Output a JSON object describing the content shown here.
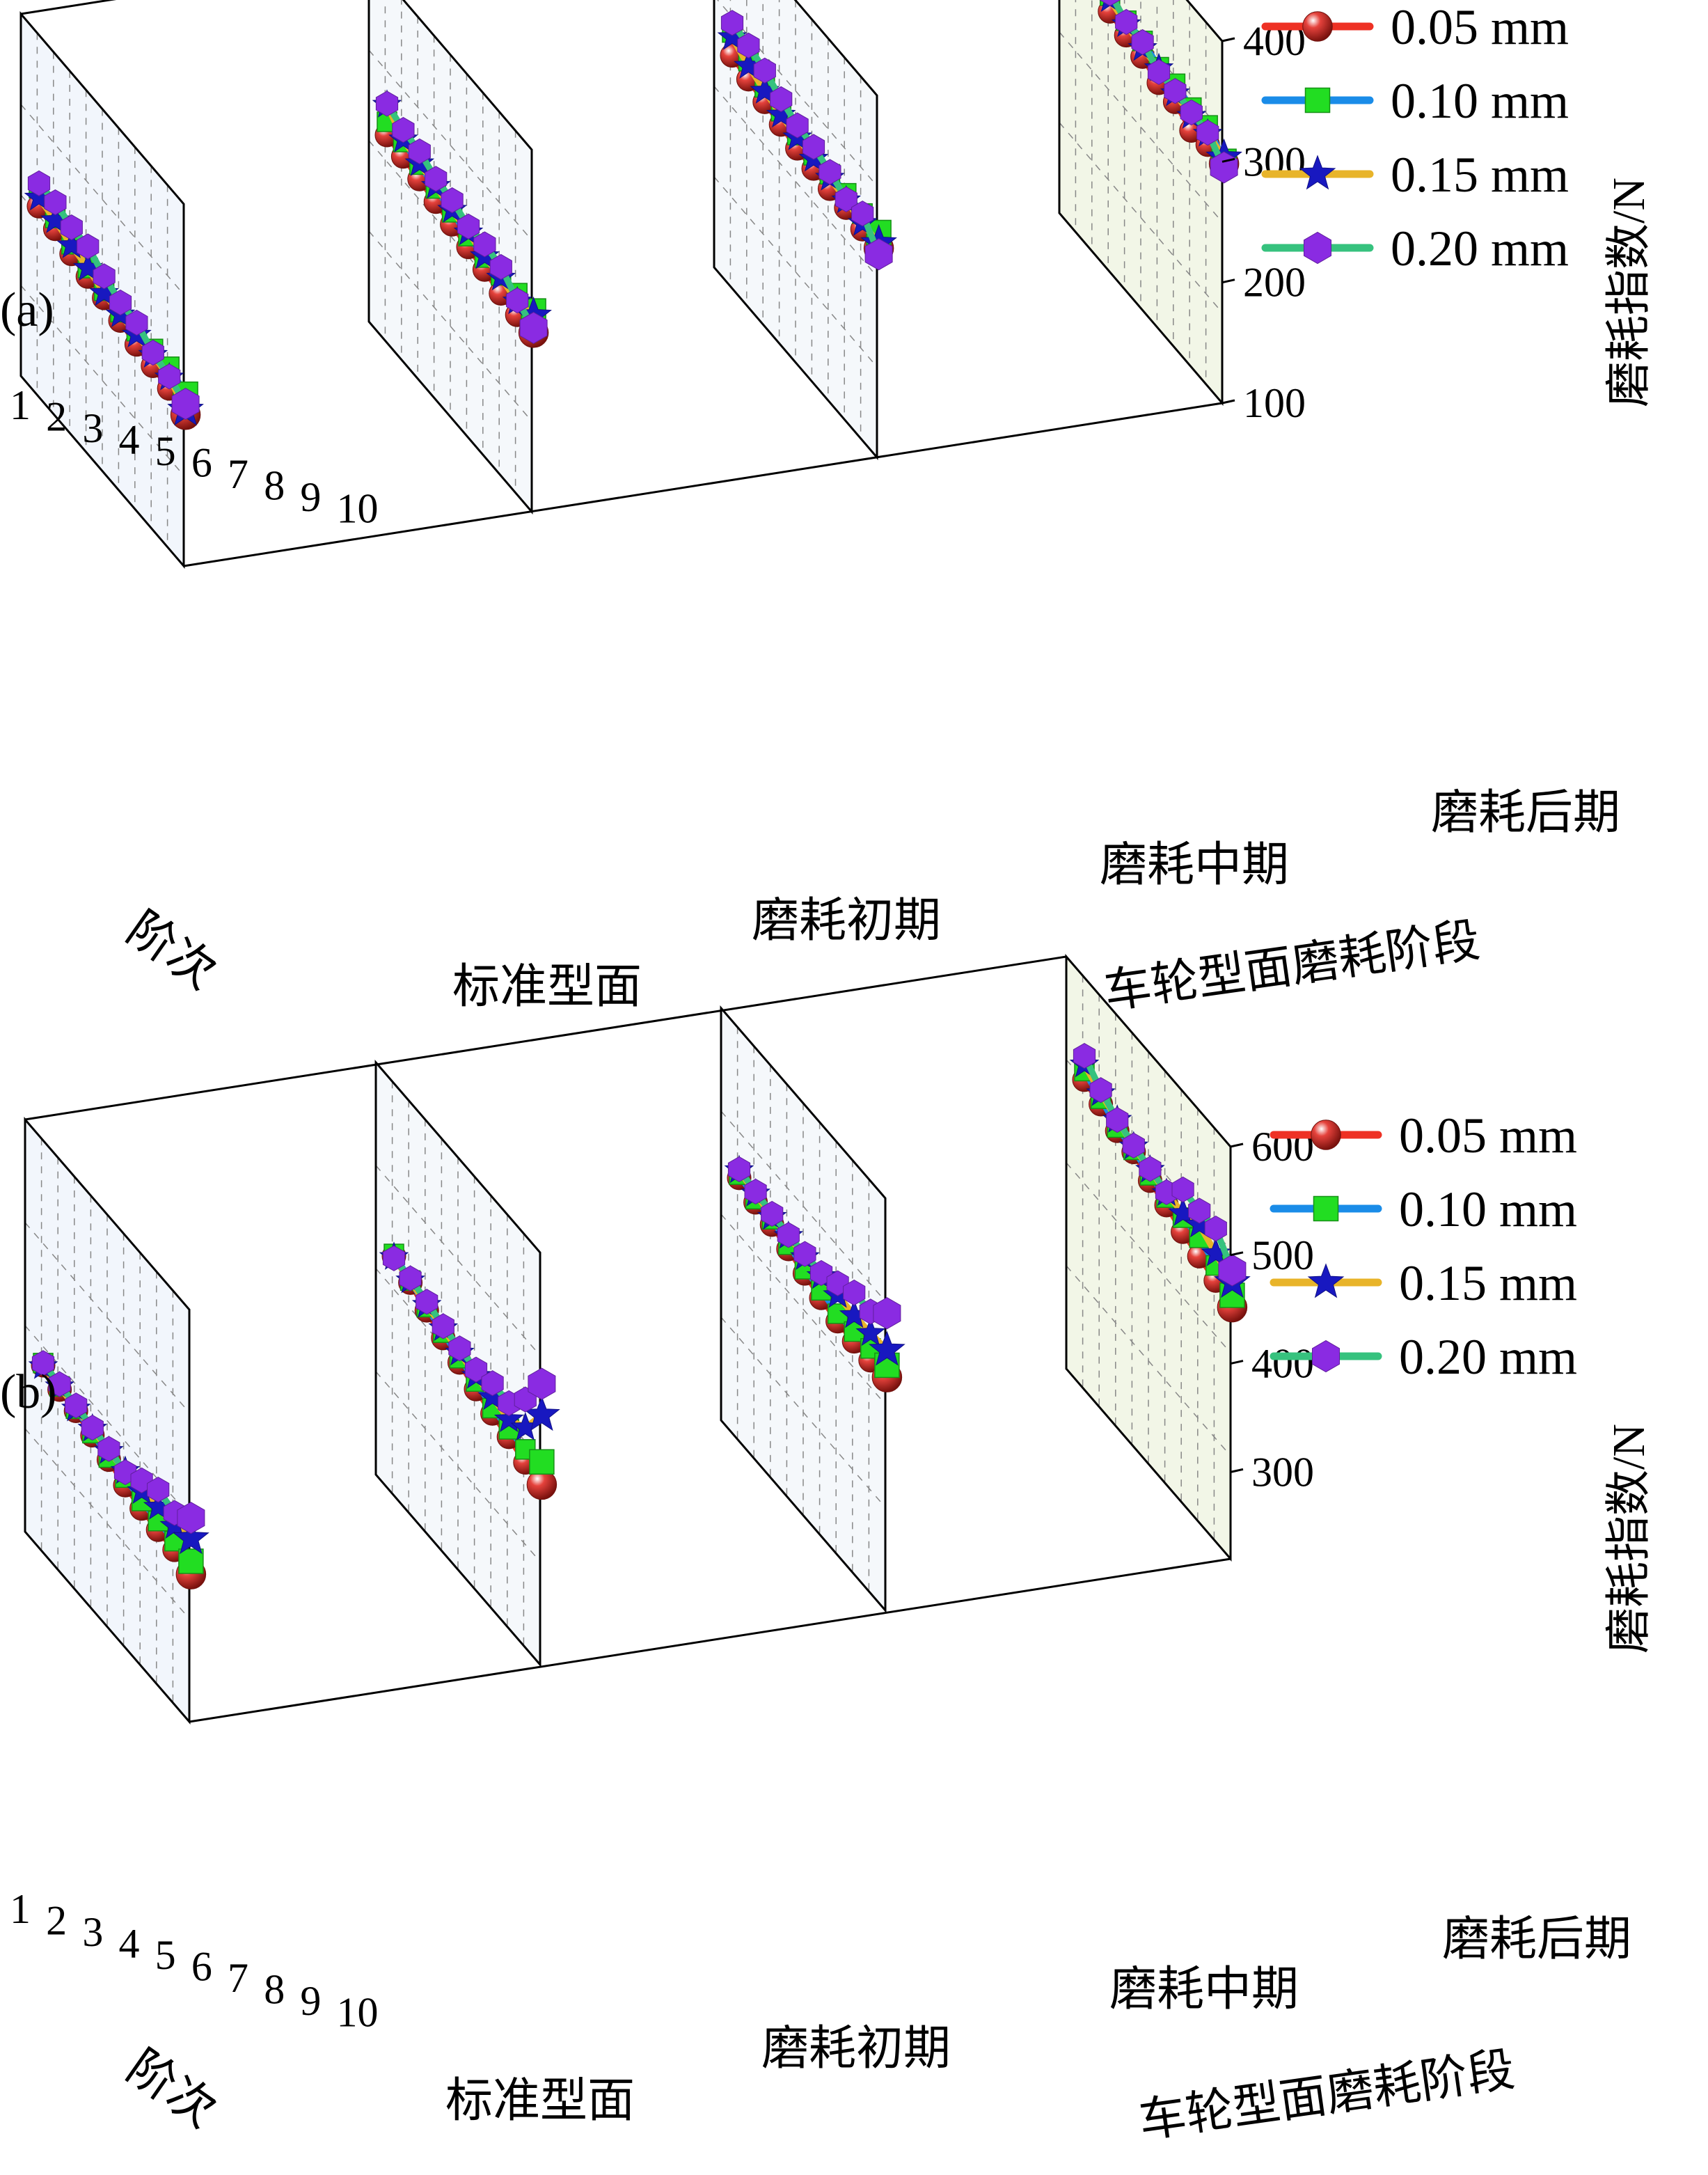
{
  "legend": [
    {
      "label": "0.05 mm",
      "color": "#ee3124",
      "marker": "sphere",
      "marker_color": "#e0211a"
    },
    {
      "label": "0.10 mm",
      "color": "#1a8ce8",
      "marker": "square",
      "marker_color": "#22dd22"
    },
    {
      "label": "0.15 mm",
      "color": "#e8b42a",
      "marker": "star",
      "marker_color": "#1818c0"
    },
    {
      "label": "0.20 mm",
      "color": "#36c27e",
      "marker": "hexagon",
      "marker_color": "#8a2be2"
    }
  ],
  "chart_data": [
    {
      "panel_label": "(a)",
      "type": "line3d",
      "x_title": "阶次",
      "x_ticks": [
        "1",
        "2",
        "3",
        "4",
        "5",
        "6",
        "7",
        "8",
        "9",
        "10"
      ],
      "y_title": "车轮型面磨耗阶段",
      "y_categories": [
        "标准型面",
        "磨耗初期",
        "磨耗中期",
        "磨耗后期"
      ],
      "z_title": "磨耗指数/N",
      "z_ticks": [
        "100",
        "200",
        "300",
        "400"
      ],
      "zlim": [
        100,
        400
      ],
      "series": [
        {
          "name": "0.05 mm",
          "groups": [
            [
              251,
              248,
              243,
              240,
              238,
              235,
              231,
              229,
              226,
              220
            ],
            [
              265,
              263,
              260,
              257,
              254,
              251,
              248,
              244,
              242,
              243
            ],
            [
              286,
              282,
              279,
              276,
              272,
              271,
              270,
              270,
              268,
              268
            ],
            [
              323,
              317,
              309,
              305,
              303,
              297,
              297,
              289,
              293,
              293
            ]
          ]
        },
        {
          "name": "0.10 mm",
          "groups": [
            [
              266,
              257,
              251,
              247,
              244,
              242,
              242,
              243,
              244,
              237
            ],
            [
              276,
              275,
              272,
              268,
              264,
              260,
              258,
              259,
              260,
              261
            ],
            [
              305,
              297,
              291,
              287,
              283,
              282,
              282,
              282,
              281,
              281
            ],
            [
              340,
              331,
              322,
              317,
              316,
              310,
              312,
              308,
              309,
              295
            ]
          ]
        },
        {
          "name": "0.15 mm",
          "groups": [
            [
              258,
              255,
              250,
              247,
              242,
              240,
              239,
              238,
              235,
              224
            ],
            [
              290,
              277,
              273,
              270,
              266,
              263,
              259,
              257,
              253,
              257
            ],
            [
              301,
              293,
              288,
              284,
              281,
              279,
              279,
              276,
              273,
              272
            ],
            [
              339,
              330,
              319,
              314,
              310,
              309,
              304,
              301,
              302,
              298
            ]
          ]
        },
        {
          "name": "0.20 mm",
          "groups": [
            [
              270,
              270,
              265,
              265,
              256,
              250,
              249,
              240,
              236,
              229
            ],
            [
              291,
              285,
              283,
              276,
              274,
              268,
              269,
              266,
              254,
              247
            ],
            [
              313,
              310,
              305,
              297,
              291,
              289,
              284,
              277,
              281,
              263
            ],
            [
              351,
              336,
              324,
              316,
              315,
              306,
              306,
              304,
              303,
              290
            ]
          ]
        }
      ]
    },
    {
      "panel_label": "(b)",
      "type": "line3d",
      "x_title": "阶次",
      "x_ticks": [
        "1",
        "2",
        "3",
        "4",
        "5",
        "6",
        "7",
        "8",
        "9",
        "10"
      ],
      "y_title": "车轮型面磨耗阶段",
      "y_categories": [
        "标准型面",
        "磨耗初期",
        "磨耗中期",
        "磨耗后期"
      ],
      "z_title": "磨耗指数/N",
      "z_ticks": [
        "300",
        "400",
        "500",
        "600"
      ],
      "zlim": [
        220,
        600
      ],
      "series": [
        {
          "name": "0.05 mm",
          "groups": [
            [
              385,
              380,
              378,
              373,
              368,
              362,
              358,
              356,
              355,
              350
            ],
            [
              433,
              426,
              418,
              410,
              405,
              398,
              393,
              389,
              383,
              380
            ],
            [
              455,
              450,
              447,
              442,
              437,
              432,
              428,
              427,
              427,
              429
            ],
            [
              498,
              493,
              486,
              484,
              475,
              470,
              463,
              458,
              453,
              446
            ]
          ]
        },
        {
          "name": "0.10 mm",
          "groups": [
            [
              387,
              383,
              380,
              375,
              370,
              369,
              365,
              364,
              363,
              362
            ],
            [
              435,
              428,
              421,
              415,
              409,
              405,
              398,
              396,
              395,
              401
            ],
            [
              458,
              453,
              452,
              446,
              441,
              439,
              435,
              436,
              438,
              440
            ],
            [
              506,
              498,
              489,
              486,
              480,
              477,
              476,
              475,
              467,
              457
            ]
          ]
        },
        {
          "name": "0.15 mm",
          "groups": [
            [
              384,
              383,
              380,
              379,
              376,
              375,
              374,
              377,
              377,
              383
            ],
            [
              432,
              428,
              423,
              419,
              414,
              410,
              408,
              405,
              415,
              444
            ],
            [
              462,
              458,
              454,
              454,
              452,
              452,
              452,
              451,
              452,
              454
            ],
            [
              512,
              503,
              496,
              489,
              485,
              481,
              480,
              487,
              478,
              469
            ]
          ]
        },
        {
          "name": "0.20 mm",
          "groups": [
            [
              387,
              385,
              383,
              380,
              378,
              374,
              384,
              393,
              389,
              402
            ],
            [
              431,
              430,
              426,
              421,
              418,
              416,
              421,
              420,
              441,
              473
            ],
            [
              463,
              460,
              457,
              455,
              455,
              455,
              463,
              472,
              472,
              488
            ],
            [
              520,
              506,
              496,
              490,
              486,
              482,
              502,
              500,
              501,
              480
            ]
          ]
        }
      ]
    }
  ]
}
